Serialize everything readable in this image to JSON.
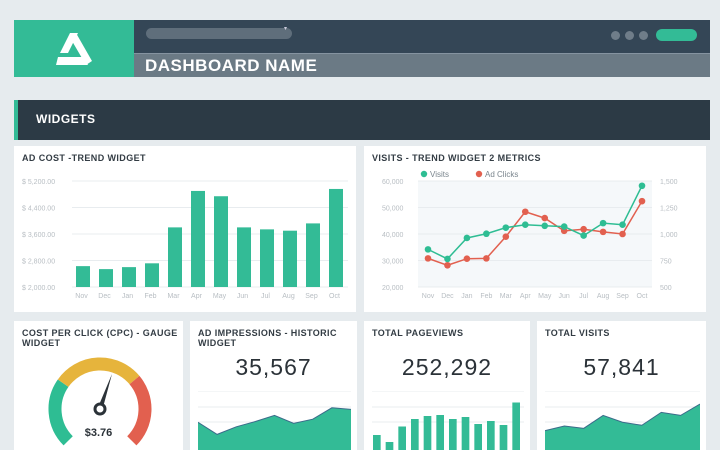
{
  "header": {
    "dashboard_name": "DASHBOARD NAME",
    "logo": "triangle-logo-icon",
    "accent": "#33bb96"
  },
  "section": {
    "title": "WIDGETS"
  },
  "ad_cost": {
    "title": "AD COST -TREND WIDGET"
  },
  "visits_trend": {
    "title": "VISITS - TREND WIDGET 2 METRICS"
  },
  "cpc": {
    "title1": "COST PER CLICK (CPC) - GAUGE",
    "title2": "WIDGET",
    "value": "$3.76",
    "needle_fraction": 0.57,
    "colors": [
      "#2ebd93",
      "#e6b43c",
      "#e2604f"
    ]
  },
  "impressions": {
    "title1": "AD IMPRESSIONS - HISTORIC",
    "title2": "WIDGET",
    "value": "35,567"
  },
  "pageviews": {
    "title": "TOTAL PAGEVIEWS",
    "value": "252,292"
  },
  "total_visits": {
    "title": "TOTAL VISITS",
    "value": "57,841"
  },
  "chart_data": [
    {
      "type": "bar",
      "title": "AD COST -TREND WIDGET",
      "categories": [
        "Nov",
        "Dec",
        "Jan",
        "Feb",
        "Mar",
        "Apr",
        "May",
        "Jun",
        "Jul",
        "Aug",
        "Sep",
        "Oct"
      ],
      "values": [
        2630,
        2540,
        2600,
        2715,
        3800,
        4900,
        4740,
        3800,
        3740,
        3700,
        3920,
        4960
      ],
      "ylim": [
        2000,
        5200
      ],
      "yticks": [
        "$ 2,000.00",
        "$ 2,800.00",
        "$ 3,600.00",
        "$ 4,400.00",
        "$ 5,200.00"
      ],
      "color": "#33bb96",
      "grid": true
    },
    {
      "type": "line",
      "title": "VISITS - TREND WIDGET 2 METRICS",
      "categories": [
        "Nov",
        "Dec",
        "Jan",
        "Feb",
        "Mar",
        "Apr",
        "May",
        "Jun",
        "Jul",
        "Aug",
        "Sep",
        "Oct"
      ],
      "legend": "top-left",
      "series": [
        {
          "name": "Visits",
          "axis": "left",
          "color": "#2ebd93",
          "values": [
            34200,
            30600,
            38500,
            40100,
            42400,
            43500,
            43100,
            42800,
            39400,
            44100,
            43500,
            58200
          ]
        },
        {
          "name": "Ad Clicks",
          "axis": "right",
          "color": "#e2604f",
          "values": [
            770,
            705,
            767,
            770,
            975,
            1210,
            1150,
            1030,
            1045,
            1020,
            1000,
            1310
          ]
        }
      ],
      "ylim_left": [
        20000,
        60000
      ],
      "yticks_left": [
        "20,000",
        "30,000",
        "40,000",
        "50,000",
        "60,000"
      ],
      "ylim_right": [
        500,
        1500
      ],
      "yticks_right": [
        "500",
        "750",
        "1,000",
        "1,250",
        "1,500"
      ],
      "grid": true
    },
    {
      "type": "area",
      "values": [
        52,
        20,
        40,
        54,
        70,
        49,
        60,
        90,
        86
      ]
    },
    {
      "type": "bar",
      "values": [
        30,
        16,
        47,
        62,
        68,
        70,
        62,
        66,
        52,
        58,
        50,
        95
      ]
    },
    {
      "type": "area",
      "values": [
        30,
        42,
        36,
        70,
        52,
        44,
        78,
        70,
        100
      ]
    }
  ]
}
